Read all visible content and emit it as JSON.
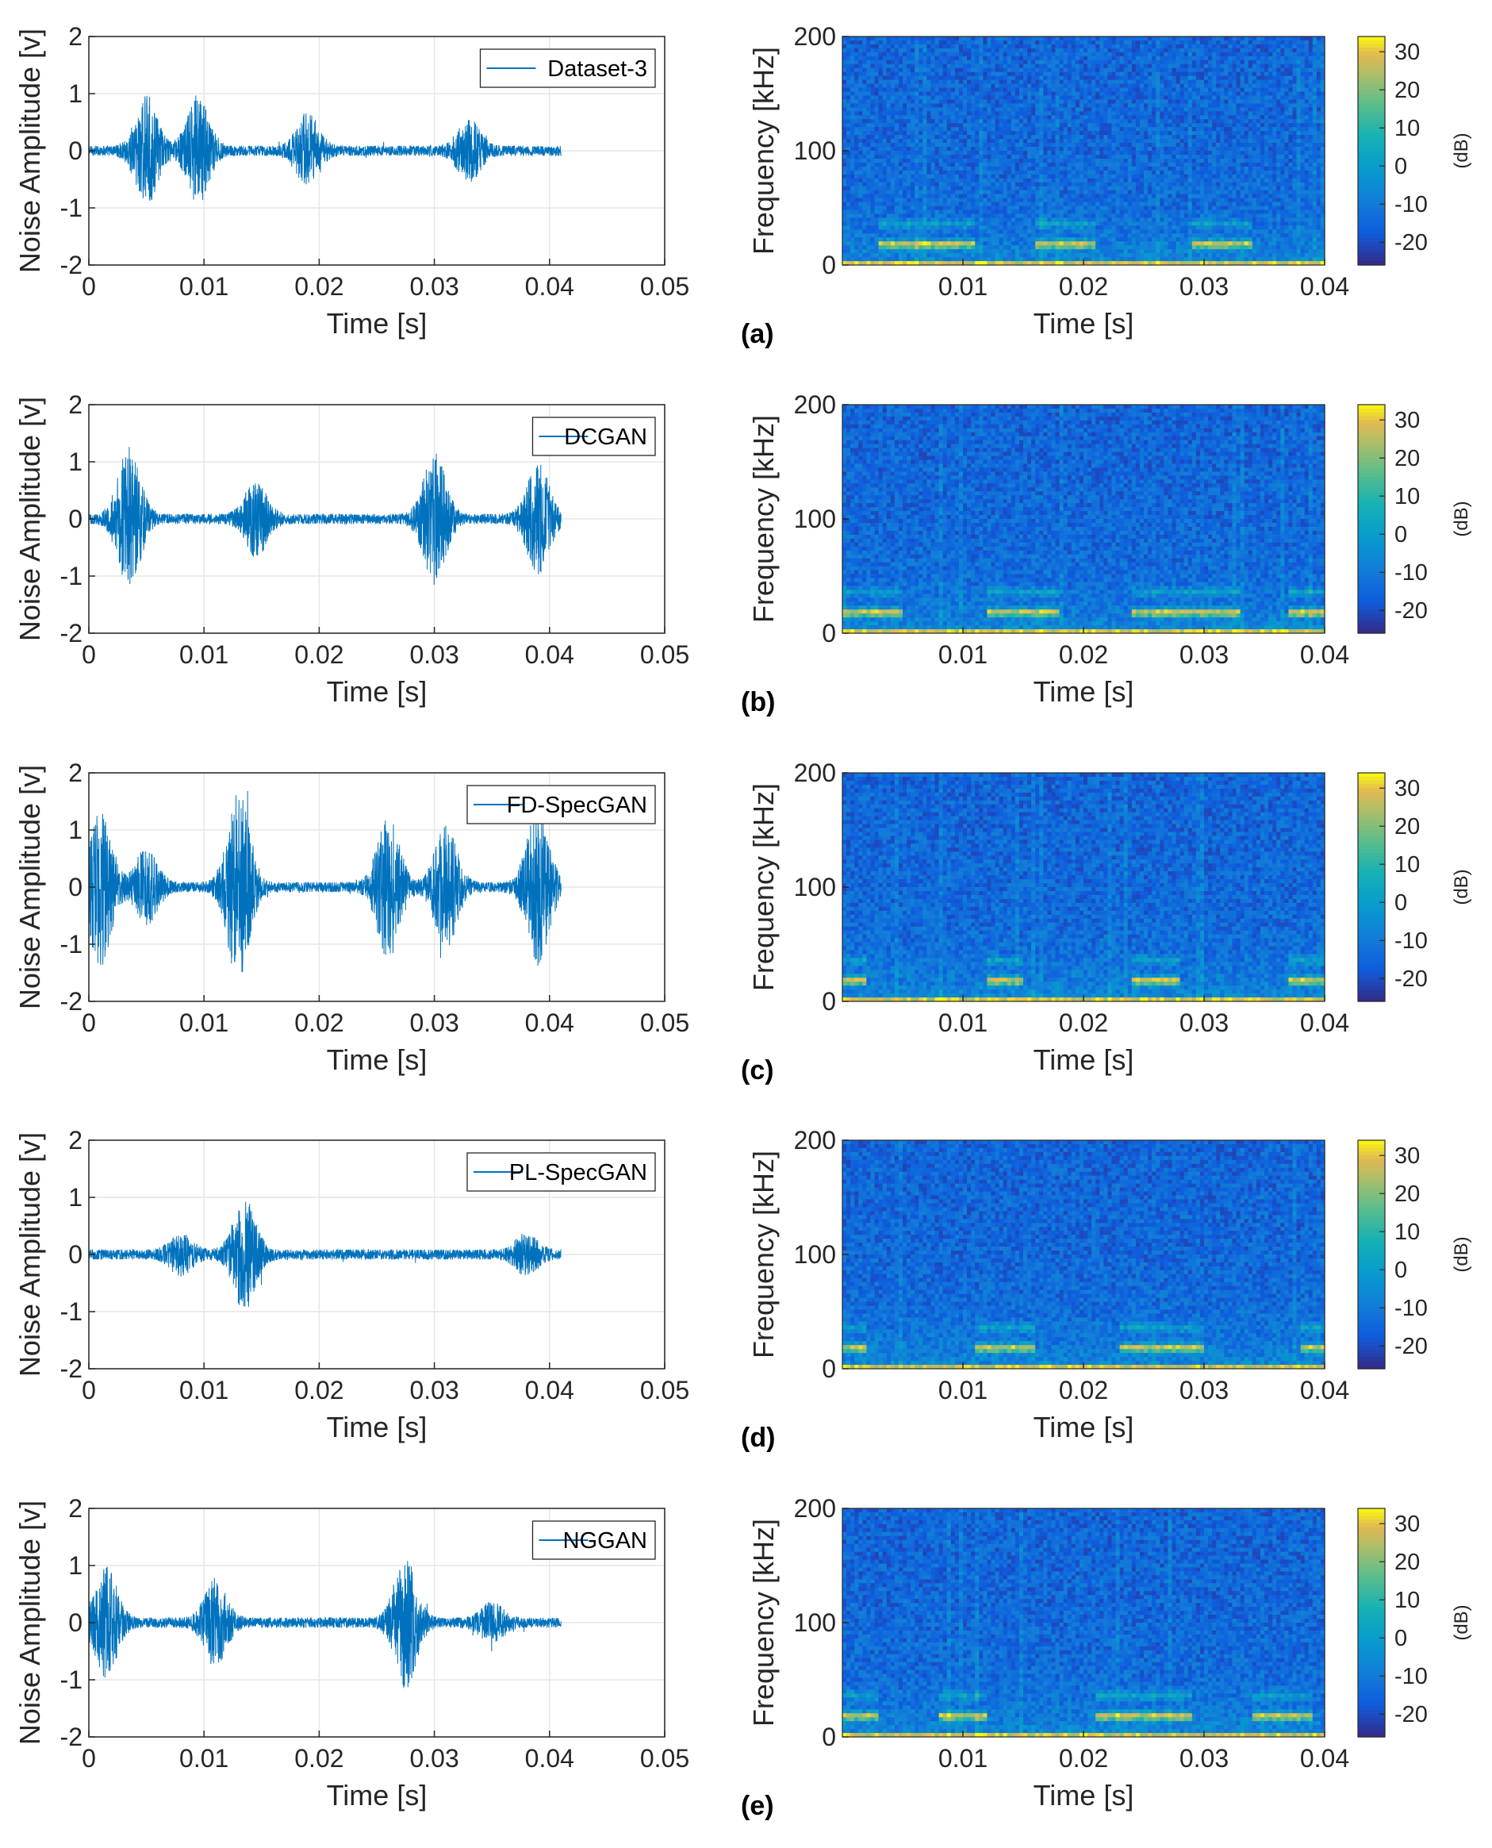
{
  "chart_data": [
    {
      "type": "line",
      "series": [
        {
          "name": "Dataset-3",
          "duration": 0.041,
          "bursts": [
            [
              0.005,
              0.9
            ],
            [
              0.0095,
              0.9
            ],
            [
              0.019,
              0.6
            ],
            [
              0.033,
              0.5
            ]
          ]
        }
      ],
      "xlabel": "Time [s]",
      "ylabel": "Noise Amplitude [v]",
      "xlim": [
        0,
        0.05
      ],
      "ylim": [
        -2,
        2
      ],
      "xticks": [
        "0",
        "0.01",
        "0.02",
        "0.03",
        "0.04",
        "0.05"
      ],
      "yticks": [
        "2",
        "1",
        "0",
        "-1",
        "-2"
      ],
      "grid": true,
      "legend": "top-right",
      "color": "#0072BD"
    },
    {
      "type": "heatmap",
      "xlabel": "Time [s]",
      "ylabel": "Frequency [kHz]",
      "xlim": [
        0,
        0.04
      ],
      "ylim": [
        0,
        200
      ],
      "xticks": [
        "0.01",
        "0.02",
        "0.03",
        "0.04"
      ],
      "yticks": [
        "200",
        "100",
        "0"
      ],
      "colorbar": {
        "ticks": [
          "30",
          "20",
          "10",
          "0",
          "-10",
          "-20"
        ],
        "unit": "(dB)",
        "range": [
          -26,
          34
        ]
      },
      "bands": [
        {
          "f": 18,
          "segments": [
            [
              0.003,
              0.011
            ],
            [
              0.016,
              0.021
            ],
            [
              0.029,
              0.034
            ]
          ]
        }
      ],
      "panel_label": "(a)"
    },
    {
      "type": "line",
      "series": [
        {
          "name": "DCGAN",
          "duration": 0.041,
          "bursts": [
            [
              0.0035,
              1.2
            ],
            [
              0.0145,
              0.6
            ],
            [
              0.03,
              1.1
            ],
            [
              0.039,
              0.9
            ]
          ]
        }
      ],
      "xlabel": "Time [s]",
      "ylabel": "Noise Amplitude [v]",
      "xlim": [
        0,
        0.05
      ],
      "ylim": [
        -2,
        2
      ],
      "xticks": [
        "0",
        "0.01",
        "0.02",
        "0.03",
        "0.04",
        "0.05"
      ],
      "yticks": [
        "2",
        "1",
        "0",
        "-1",
        "-2"
      ],
      "grid": true,
      "legend": "top-right",
      "color": "#0072BD"
    },
    {
      "type": "heatmap",
      "xlabel": "Time [s]",
      "ylabel": "Frequency [kHz]",
      "xlim": [
        0,
        0.04
      ],
      "ylim": [
        0,
        200
      ],
      "xticks": [
        "0.01",
        "0.02",
        "0.03",
        "0.04"
      ],
      "yticks": [
        "200",
        "100",
        "0"
      ],
      "colorbar": {
        "ticks": [
          "30",
          "20",
          "10",
          "0",
          "-10",
          "-20"
        ],
        "unit": "(dB)",
        "range": [
          -26,
          34
        ]
      },
      "bands": [
        {
          "f": 18,
          "segments": [
            [
              0.0,
              0.005
            ],
            [
              0.012,
              0.018
            ],
            [
              0.024,
              0.033
            ],
            [
              0.037,
              0.04
            ]
          ]
        }
      ],
      "panel_label": "(b)"
    },
    {
      "type": "line",
      "series": [
        {
          "name": "FD-SpecGAN",
          "duration": 0.041,
          "bursts": [
            [
              0.001,
              1.3
            ],
            [
              0.005,
              0.6
            ],
            [
              0.013,
              1.6
            ],
            [
              0.026,
              1.2
            ],
            [
              0.031,
              1.0
            ],
            [
              0.039,
              1.3
            ]
          ]
        }
      ],
      "xlabel": "Time [s]",
      "ylabel": "Noise Amplitude [v]",
      "xlim": [
        0,
        0.05
      ],
      "ylim": [
        -2,
        2
      ],
      "xticks": [
        "0",
        "0.01",
        "0.02",
        "0.03",
        "0.04",
        "0.05"
      ],
      "yticks": [
        "2",
        "1",
        "0",
        "-1",
        "-2"
      ],
      "grid": true,
      "legend": "top-right",
      "color": "#0072BD"
    },
    {
      "type": "heatmap",
      "xlabel": "Time [s]",
      "ylabel": "Frequency [kHz]",
      "xlim": [
        0,
        0.04
      ],
      "ylim": [
        0,
        200
      ],
      "xticks": [
        "0.01",
        "0.02",
        "0.03",
        "0.04"
      ],
      "yticks": [
        "200",
        "100",
        "0"
      ],
      "colorbar": {
        "ticks": [
          "30",
          "20",
          "10",
          "0",
          "-10",
          "-20"
        ],
        "unit": "(dB)",
        "range": [
          -26,
          34
        ]
      },
      "bands": [
        {
          "f": 18,
          "segments": [
            [
              0.0,
              0.002
            ],
            [
              0.012,
              0.015
            ],
            [
              0.024,
              0.028
            ],
            [
              0.037,
              0.04
            ]
          ]
        }
      ],
      "panel_label": "(c)"
    },
    {
      "type": "line",
      "series": [
        {
          "name": "PL-SpecGAN",
          "duration": 0.041,
          "bursts": [
            [
              0.0135,
              0.9
            ],
            [
              0.008,
              0.3
            ],
            [
              0.038,
              0.3
            ]
          ]
        }
      ],
      "xlabel": "Time [s]",
      "ylabel": "Noise Amplitude [v]",
      "xlim": [
        0,
        0.05
      ],
      "ylim": [
        -2,
        2
      ],
      "xticks": [
        "0",
        "0.01",
        "0.02",
        "0.03",
        "0.04",
        "0.05"
      ],
      "yticks": [
        "2",
        "1",
        "0",
        "-1",
        "-2"
      ],
      "grid": true,
      "legend": "top-right",
      "color": "#0072BD"
    },
    {
      "type": "heatmap",
      "xlabel": "Time [s]",
      "ylabel": "Frequency [kHz]",
      "xlim": [
        0,
        0.04
      ],
      "ylim": [
        0,
        200
      ],
      "xticks": [
        "0.01",
        "0.02",
        "0.03",
        "0.04"
      ],
      "yticks": [
        "200",
        "100",
        "0"
      ],
      "colorbar": {
        "ticks": [
          "30",
          "20",
          "10",
          "0",
          "-10",
          "-20"
        ],
        "unit": "(dB)",
        "range": [
          -26,
          34
        ]
      },
      "bands": [
        {
          "f": 18,
          "segments": [
            [
              0.0,
              0.002
            ],
            [
              0.011,
              0.016
            ],
            [
              0.023,
              0.03
            ],
            [
              0.038,
              0.04
            ]
          ]
        }
      ],
      "panel_label": "(d)"
    },
    {
      "type": "line",
      "series": [
        {
          "name": "NGGAN",
          "duration": 0.041,
          "bursts": [
            [
              0.0015,
              0.9
            ],
            [
              0.011,
              0.7
            ],
            [
              0.0275,
              1.1
            ],
            [
              0.035,
              0.3
            ]
          ]
        }
      ],
      "xlabel": "Time [s]",
      "ylabel": "Noise Amplitude [v]",
      "xlim": [
        0,
        0.05
      ],
      "ylim": [
        -2,
        2
      ],
      "xticks": [
        "0",
        "0.01",
        "0.02",
        "0.03",
        "0.04",
        "0.05"
      ],
      "yticks": [
        "2",
        "1",
        "0",
        "-1",
        "-2"
      ],
      "grid": true,
      "legend": "top-right",
      "color": "#0072BD"
    },
    {
      "type": "heatmap",
      "xlabel": "Time [s]",
      "ylabel": "Frequency [kHz]",
      "xlim": [
        0,
        0.04
      ],
      "ylim": [
        0,
        200
      ],
      "xticks": [
        "0.01",
        "0.02",
        "0.03",
        "0.04"
      ],
      "yticks": [
        "200",
        "100",
        "0"
      ],
      "colorbar": {
        "ticks": [
          "30",
          "20",
          "10",
          "0",
          "-10",
          "-20"
        ],
        "unit": "(dB)",
        "range": [
          -26,
          34
        ]
      },
      "bands": [
        {
          "f": 18,
          "segments": [
            [
              0.0,
              0.003
            ],
            [
              0.008,
              0.012
            ],
            [
              0.021,
              0.029
            ],
            [
              0.034,
              0.039
            ]
          ]
        }
      ],
      "panel_label": "(e)"
    }
  ]
}
